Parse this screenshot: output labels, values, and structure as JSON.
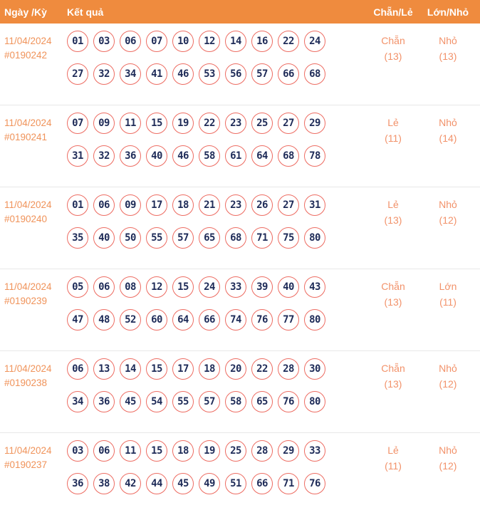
{
  "header": {
    "col_date": "Ngày /Kỳ",
    "col_result": "Kết quả",
    "col_parity": "Chẵn/Lẻ",
    "col_size": "Lớn/Nhỏ"
  },
  "colors": {
    "header_bg": "#ef8b3e",
    "header_text": "#ffffff",
    "date_text": "#f0935a",
    "stat_text": "#f2926a",
    "ball_border": "#ed6c62",
    "ball_number": "#1e2b58",
    "row_divider": "#e8e8e8",
    "page_bg": "#ffffff"
  },
  "rows": [
    {
      "date": "11/04/2024",
      "draw_id": "#0190242",
      "numbers_line1": [
        "01",
        "03",
        "06",
        "07",
        "10",
        "12",
        "14",
        "16",
        "22",
        "24"
      ],
      "numbers_line2": [
        "27",
        "32",
        "34",
        "41",
        "46",
        "53",
        "56",
        "57",
        "66",
        "68"
      ],
      "parity": "Chẵn",
      "parity_count": "(13)",
      "size": "Nhỏ",
      "size_count": "(13)"
    },
    {
      "date": "11/04/2024",
      "draw_id": "#0190241",
      "numbers_line1": [
        "07",
        "09",
        "11",
        "15",
        "19",
        "22",
        "23",
        "25",
        "27",
        "29"
      ],
      "numbers_line2": [
        "31",
        "32",
        "36",
        "40",
        "46",
        "58",
        "61",
        "64",
        "68",
        "78"
      ],
      "parity": "Lẻ",
      "parity_count": "(11)",
      "size": "Nhỏ",
      "size_count": "(14)"
    },
    {
      "date": "11/04/2024",
      "draw_id": "#0190240",
      "numbers_line1": [
        "01",
        "06",
        "09",
        "17",
        "18",
        "21",
        "23",
        "26",
        "27",
        "31"
      ],
      "numbers_line2": [
        "35",
        "40",
        "50",
        "55",
        "57",
        "65",
        "68",
        "71",
        "75",
        "80"
      ],
      "parity": "Lẻ",
      "parity_count": "(13)",
      "size": "Nhỏ",
      "size_count": "(12)"
    },
    {
      "date": "11/04/2024",
      "draw_id": "#0190239",
      "numbers_line1": [
        "05",
        "06",
        "08",
        "12",
        "15",
        "24",
        "33",
        "39",
        "40",
        "43"
      ],
      "numbers_line2": [
        "47",
        "48",
        "52",
        "60",
        "64",
        "66",
        "74",
        "76",
        "77",
        "80"
      ],
      "parity": "Chẵn",
      "parity_count": "(13)",
      "size": "Lớn",
      "size_count": "(11)"
    },
    {
      "date": "11/04/2024",
      "draw_id": "#0190238",
      "numbers_line1": [
        "06",
        "13",
        "14",
        "15",
        "17",
        "18",
        "20",
        "22",
        "28",
        "30"
      ],
      "numbers_line2": [
        "34",
        "36",
        "45",
        "54",
        "55",
        "57",
        "58",
        "65",
        "76",
        "80"
      ],
      "parity": "Chẵn",
      "parity_count": "(13)",
      "size": "Nhỏ",
      "size_count": "(12)"
    },
    {
      "date": "11/04/2024",
      "draw_id": "#0190237",
      "numbers_line1": [
        "03",
        "06",
        "11",
        "15",
        "18",
        "19",
        "25",
        "28",
        "29",
        "33"
      ],
      "numbers_line2": [
        "36",
        "38",
        "42",
        "44",
        "45",
        "49",
        "51",
        "66",
        "71",
        "76"
      ],
      "parity": "Lẻ",
      "parity_count": "(11)",
      "size": "Nhỏ",
      "size_count": "(12)"
    }
  ]
}
